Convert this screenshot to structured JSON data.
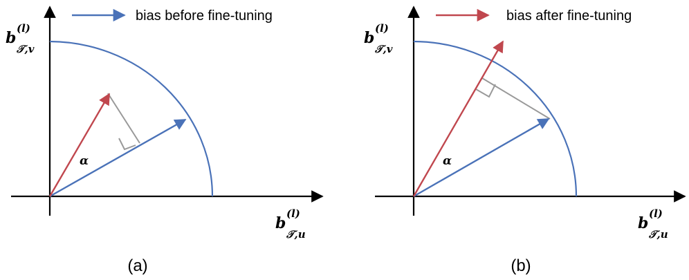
{
  "colors": {
    "axis": "#000000",
    "circle": "#4a72b8",
    "blue_vector": "#4a72b8",
    "red_vector": "#c0474e",
    "projection": "#999999"
  },
  "panels": [
    {
      "caption": "(a)",
      "legend_label": "bias before fine-tuning",
      "legend_color": "blue",
      "alpha_label": "α",
      "y_axis_label": {
        "base": "b",
        "sup": "(l)",
        "sub": "𝒯,v"
      },
      "x_axis_label": {
        "base": "b",
        "sup": "(l)",
        "sub": "𝒯,u"
      }
    },
    {
      "caption": "(b)",
      "legend_label": "bias after fine-tuning",
      "legend_color": "red",
      "alpha_label": "α",
      "y_axis_label": {
        "base": "b",
        "sup": "(l)",
        "sub": "𝒯,v"
      },
      "x_axis_label": {
        "base": "b",
        "sup": "(l)",
        "sub": "𝒯,u"
      }
    }
  ]
}
